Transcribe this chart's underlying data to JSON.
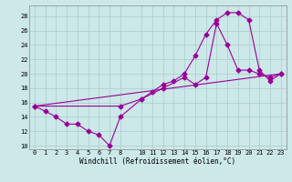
{
  "xlabel": "Windchill (Refroidissement éolien,°C)",
  "bg_color": "#cce8e8",
  "grid_color": "#aacccc",
  "line_color": "#990099",
  "xlim": [
    -0.5,
    23.5
  ],
  "ylim": [
    9.5,
    29.5
  ],
  "xticks": [
    0,
    1,
    2,
    3,
    4,
    5,
    6,
    7,
    8,
    10,
    11,
    12,
    13,
    14,
    15,
    16,
    17,
    18,
    19,
    20,
    21,
    22,
    23
  ],
  "yticks": [
    10,
    12,
    14,
    16,
    18,
    20,
    22,
    24,
    26,
    28
  ],
  "line1_x": [
    0,
    1,
    2,
    3,
    4,
    5,
    6,
    7,
    8,
    10,
    11,
    12,
    13,
    14,
    15,
    16,
    17,
    18,
    19,
    20,
    21,
    22,
    23
  ],
  "line1_y": [
    15.5,
    14.8,
    14.0,
    13.0,
    13.0,
    12.0,
    11.5,
    10.0,
    14.0,
    16.5,
    17.5,
    18.5,
    19.0,
    20.0,
    22.5,
    25.5,
    27.5,
    28.5,
    28.5,
    27.5,
    20.5,
    19.0,
    20.0
  ],
  "line2_x": [
    0,
    8,
    10,
    12,
    14,
    15,
    16,
    17,
    18,
    19,
    20,
    21,
    22,
    23
  ],
  "line2_y": [
    15.5,
    15.5,
    16.5,
    18.0,
    19.5,
    18.5,
    19.5,
    27.0,
    24.0,
    20.5,
    20.5,
    20.0,
    19.5,
    20.0
  ],
  "line3_x": [
    0,
    23
  ],
  "line3_y": [
    15.5,
    20.0
  ]
}
